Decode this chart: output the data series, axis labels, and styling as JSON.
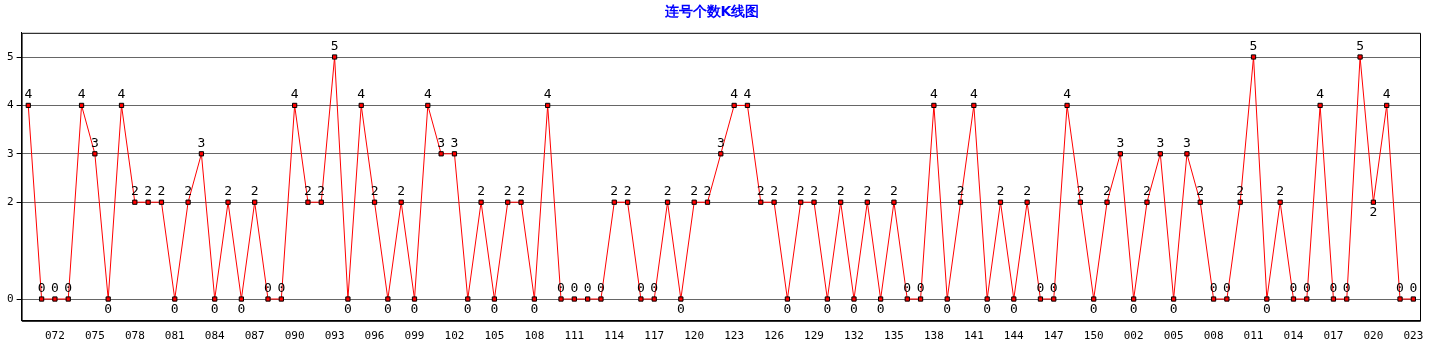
{
  "chart_data": {
    "type": "line",
    "title": "连号个数K线图",
    "categories": [
      null,
      null,
      "072",
      null,
      null,
      "075",
      null,
      null,
      "078",
      null,
      null,
      "081",
      null,
      null,
      "084",
      null,
      null,
      "087",
      null,
      null,
      "090",
      null,
      null,
      "093",
      null,
      null,
      "096",
      null,
      null,
      "099",
      null,
      null,
      "102",
      null,
      null,
      "105",
      null,
      null,
      "108",
      null,
      null,
      "111",
      null,
      null,
      "114",
      null,
      null,
      "117",
      null,
      null,
      "120",
      null,
      null,
      "123",
      null,
      null,
      "126",
      null,
      null,
      "129",
      null,
      null,
      "132",
      null,
      null,
      "135",
      null,
      null,
      "138",
      null,
      null,
      "141",
      null,
      null,
      "144",
      null,
      null,
      "147",
      null,
      null,
      "150",
      null,
      null,
      "002",
      null,
      null,
      "005",
      null,
      null,
      "008",
      null,
      null,
      "011",
      null,
      null,
      "014",
      null,
      null,
      "017",
      null,
      null,
      "020",
      null,
      null,
      "023"
    ],
    "series": [
      {
        "color": "#ff0000",
        "values": [
          4,
          0,
          0,
          0,
          4,
          3,
          0,
          4,
          2,
          2,
          2,
          0,
          2,
          3,
          0,
          2,
          0,
          2,
          0,
          0,
          4,
          2,
          2,
          5,
          0,
          4,
          2,
          0,
          2,
          0,
          4,
          3,
          3,
          0,
          2,
          0,
          2,
          2,
          0,
          4,
          0,
          0,
          0,
          0,
          2,
          2,
          0,
          0,
          2,
          0,
          2,
          2,
          3,
          4,
          4,
          2,
          2,
          0,
          2,
          2,
          0,
          2,
          0,
          2,
          0,
          2,
          0,
          0,
          4,
          0,
          2,
          4,
          0,
          2,
          0,
          2,
          0,
          0,
          4,
          2,
          0,
          2,
          3,
          0,
          2,
          3,
          0,
          3,
          2,
          0,
          0,
          2,
          5,
          0,
          2,
          0,
          0,
          4,
          0,
          0,
          5,
          2,
          4,
          0,
          0
        ]
      }
    ],
    "ylim": [
      -0.45,
      5.5
    ],
    "yticks": [
      0,
      2,
      3,
      4,
      5
    ],
    "grid": "y",
    "legend": false,
    "marker": "square",
    "line_style": "solid",
    "data_labels": true
  }
}
